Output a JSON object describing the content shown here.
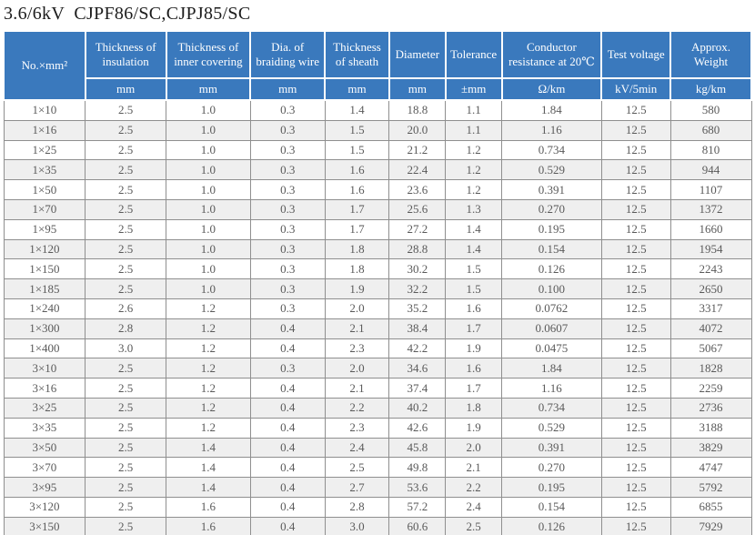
{
  "page": {
    "title": "3.6/6kV  CJPF86/SC,CJPJ85/SC"
  },
  "colors": {
    "header_bg": "#3a79bd",
    "header_text": "#ffffff",
    "row_alt_bg": "#efefef",
    "body_text": "#5a5a5a",
    "grid_line": "#8f8f8f",
    "title_text": "#1c1c1c"
  },
  "table": {
    "columns": [
      {
        "label": "No.×mm²",
        "unit": ""
      },
      {
        "label": "Thickness of insulation",
        "unit": "mm"
      },
      {
        "label": "Thickness of inner covering",
        "unit": "mm"
      },
      {
        "label": "Dia. of braiding wire",
        "unit": "mm"
      },
      {
        "label": "Thickness of sheath",
        "unit": "mm"
      },
      {
        "label": "Diameter",
        "unit": "mm"
      },
      {
        "label": "Tolerance",
        "unit": "±mm"
      },
      {
        "label": "Conductor resistance at 20℃",
        "unit": "Ω/km"
      },
      {
        "label": "Test voltage",
        "unit": "kV/5min"
      },
      {
        "label": "Approx. Weight",
        "unit": "kg/km"
      }
    ],
    "rows": [
      [
        "1×10",
        "2.5",
        "1.0",
        "0.3",
        "1.4",
        "18.8",
        "1.1",
        "1.84",
        "12.5",
        "580"
      ],
      [
        "1×16",
        "2.5",
        "1.0",
        "0.3",
        "1.5",
        "20.0",
        "1.1",
        "1.16",
        "12.5",
        "680"
      ],
      [
        "1×25",
        "2.5",
        "1.0",
        "0.3",
        "1.5",
        "21.2",
        "1.2",
        "0.734",
        "12.5",
        "810"
      ],
      [
        "1×35",
        "2.5",
        "1.0",
        "0.3",
        "1.6",
        "22.4",
        "1.2",
        "0.529",
        "12.5",
        "944"
      ],
      [
        "1×50",
        "2.5",
        "1.0",
        "0.3",
        "1.6",
        "23.6",
        "1.2",
        "0.391",
        "12.5",
        "1107"
      ],
      [
        "1×70",
        "2.5",
        "1.0",
        "0.3",
        "1.7",
        "25.6",
        "1.3",
        "0.270",
        "12.5",
        "1372"
      ],
      [
        "1×95",
        "2.5",
        "1.0",
        "0.3",
        "1.7",
        "27.2",
        "1.4",
        "0.195",
        "12.5",
        "1660"
      ],
      [
        "1×120",
        "2.5",
        "1.0",
        "0.3",
        "1.8",
        "28.8",
        "1.4",
        "0.154",
        "12.5",
        "1954"
      ],
      [
        "1×150",
        "2.5",
        "1.0",
        "0.3",
        "1.8",
        "30.2",
        "1.5",
        "0.126",
        "12.5",
        "2243"
      ],
      [
        "1×185",
        "2.5",
        "1.0",
        "0.3",
        "1.9",
        "32.2",
        "1.5",
        "0.100",
        "12.5",
        "2650"
      ],
      [
        "1×240",
        "2.6",
        "1.2",
        "0.3",
        "2.0",
        "35.2",
        "1.6",
        "0.0762",
        "12.5",
        "3317"
      ],
      [
        "1×300",
        "2.8",
        "1.2",
        "0.4",
        "2.1",
        "38.4",
        "1.7",
        "0.0607",
        "12.5",
        "4072"
      ],
      [
        "1×400",
        "3.0",
        "1.2",
        "0.4",
        "2.3",
        "42.2",
        "1.9",
        "0.0475",
        "12.5",
        "5067"
      ],
      [
        "3×10",
        "2.5",
        "1.2",
        "0.3",
        "2.0",
        "34.6",
        "1.6",
        "1.84",
        "12.5",
        "1828"
      ],
      [
        "3×16",
        "2.5",
        "1.2",
        "0.4",
        "2.1",
        "37.4",
        "1.7",
        "1.16",
        "12.5",
        "2259"
      ],
      [
        "3×25",
        "2.5",
        "1.2",
        "0.4",
        "2.2",
        "40.2",
        "1.8",
        "0.734",
        "12.5",
        "2736"
      ],
      [
        "3×35",
        "2.5",
        "1.2",
        "0.4",
        "2.3",
        "42.6",
        "1.9",
        "0.529",
        "12.5",
        "3188"
      ],
      [
        "3×50",
        "2.5",
        "1.4",
        "0.4",
        "2.4",
        "45.8",
        "2.0",
        "0.391",
        "12.5",
        "3829"
      ],
      [
        "3×70",
        "2.5",
        "1.4",
        "0.4",
        "2.5",
        "49.8",
        "2.1",
        "0.270",
        "12.5",
        "4747"
      ],
      [
        "3×95",
        "2.5",
        "1.4",
        "0.4",
        "2.7",
        "53.6",
        "2.2",
        "0.195",
        "12.5",
        "5792"
      ],
      [
        "3×120",
        "2.5",
        "1.6",
        "0.4",
        "2.8",
        "57.2",
        "2.4",
        "0.154",
        "12.5",
        "6855"
      ],
      [
        "3×150",
        "2.5",
        "1.6",
        "0.4",
        "3.0",
        "60.6",
        "2.5",
        "0.126",
        "12.5",
        "7929"
      ]
    ]
  }
}
